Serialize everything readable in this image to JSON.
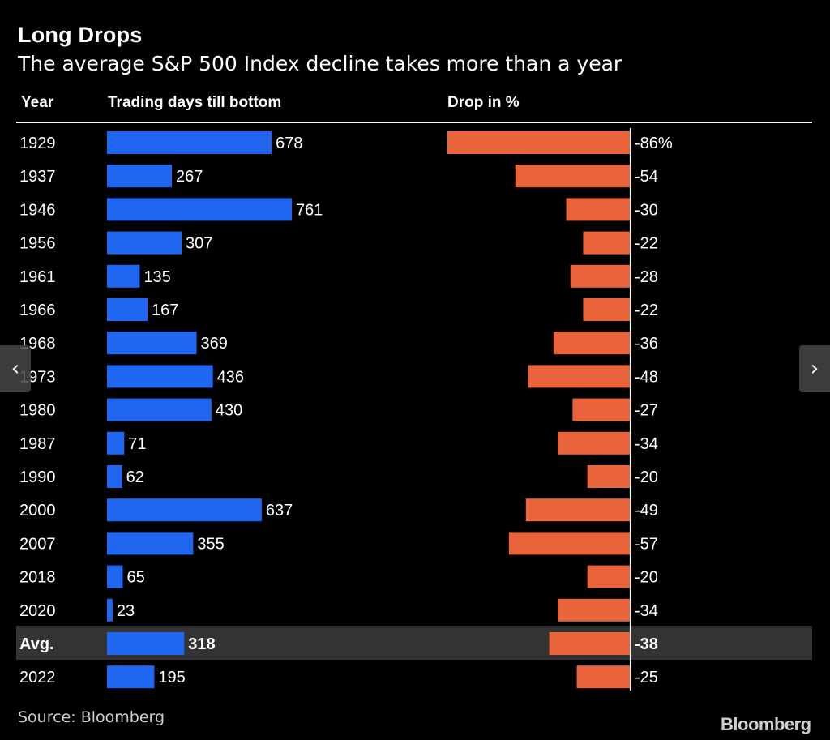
{
  "title": "Long Drops",
  "subtitle": "The average S&P 500 Index decline takes more than a year",
  "source": "Source: Bloomberg",
  "brand": "Bloomberg",
  "colors": {
    "days_bar": "#1f66f0",
    "drop_bar": "#e9643b",
    "highlight": "#333333"
  },
  "nav": {
    "prev_icon": "chevron-left-icon",
    "prev_glyph": "‹",
    "next_icon": "chevron-right-icon",
    "next_glyph": "›"
  },
  "chart_data": {
    "type": "bar",
    "headers": {
      "year": "Year",
      "days": "Trading days till bottom",
      "drop": "Drop in %"
    },
    "rows": [
      {
        "year": "1929",
        "days": 678,
        "drop": -86,
        "drop_label": "-86%"
      },
      {
        "year": "1937",
        "days": 267,
        "drop": -54,
        "drop_label": "-54"
      },
      {
        "year": "1946",
        "days": 761,
        "drop": -30,
        "drop_label": "-30"
      },
      {
        "year": "1956",
        "days": 307,
        "drop": -22,
        "drop_label": "-22"
      },
      {
        "year": "1961",
        "days": 135,
        "drop": -28,
        "drop_label": "-28"
      },
      {
        "year": "1966",
        "days": 167,
        "drop": -22,
        "drop_label": "-22"
      },
      {
        "year": "1968",
        "days": 369,
        "drop": -36,
        "drop_label": "-36"
      },
      {
        "year": "1973",
        "days": 436,
        "drop": -48,
        "drop_label": "-48"
      },
      {
        "year": "1980",
        "days": 430,
        "drop": -27,
        "drop_label": "-27"
      },
      {
        "year": "1987",
        "days": 71,
        "drop": -34,
        "drop_label": "-34"
      },
      {
        "year": "1990",
        "days": 62,
        "drop": -20,
        "drop_label": "-20"
      },
      {
        "year": "2000",
        "days": 637,
        "drop": -49,
        "drop_label": "-49"
      },
      {
        "year": "2007",
        "days": 355,
        "drop": -57,
        "drop_label": "-57"
      },
      {
        "year": "2018",
        "days": 65,
        "drop": -20,
        "drop_label": "-20"
      },
      {
        "year": "2020",
        "days": 23,
        "drop": -34,
        "drop_label": "-34"
      },
      {
        "year": "Avg.",
        "days": 318,
        "drop": -38,
        "drop_label": "-38",
        "highlight": true
      },
      {
        "year": "2022",
        "days": 195,
        "drop": -25,
        "drop_label": "-25"
      }
    ],
    "days_range": [
      0,
      761
    ],
    "drop_range": [
      -86,
      0
    ]
  }
}
